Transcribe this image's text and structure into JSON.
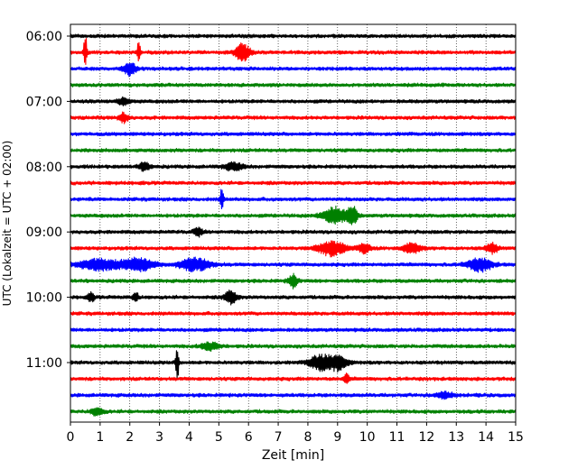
{
  "chart_data": {
    "type": "line",
    "xlabel": "Zeit  [min]",
    "ylabel": "UTC (Lokalzeit = UTC + 02:00)",
    "xlim": [
      0,
      15
    ],
    "x_ticks": [
      "0",
      "1",
      "2",
      "3",
      "4",
      "5",
      "6",
      "7",
      "8",
      "9",
      "10",
      "11",
      "12",
      "13",
      "14",
      "15"
    ],
    "y_tick_labels": [
      "06:00",
      "07:00",
      "08:00",
      "09:00",
      "10:00",
      "11:00"
    ],
    "vertical_grid": "dotted, every 1 min",
    "colors": [
      "#000000",
      "#ff0000",
      "#0000ff",
      "#008000"
    ],
    "trace_interval_min": 15,
    "first_trace": "06:00",
    "trace_count": 24,
    "events": [
      {
        "trace": 1,
        "t": 0.5,
        "amp": 22,
        "width": 0.05
      },
      {
        "trace": 1,
        "t": 2.3,
        "amp": 14,
        "width": 0.05
      },
      {
        "trace": 1,
        "t": 5.8,
        "amp": 9,
        "width": 0.25
      },
      {
        "trace": 2,
        "t": 2.0,
        "amp": 7,
        "width": 0.2
      },
      {
        "trace": 4,
        "t": 1.8,
        "amp": 4,
        "width": 0.2
      },
      {
        "trace": 5,
        "t": 1.8,
        "amp": 5,
        "width": 0.15
      },
      {
        "trace": 8,
        "t": 2.5,
        "amp": 4,
        "width": 0.2
      },
      {
        "trace": 8,
        "t": 5.5,
        "amp": 4,
        "width": 0.3
      },
      {
        "trace": 10,
        "t": 5.1,
        "amp": 15,
        "width": 0.05
      },
      {
        "trace": 11,
        "t": 8.9,
        "amp": 9,
        "width": 0.4
      },
      {
        "trace": 11,
        "t": 9.5,
        "amp": 11,
        "width": 0.15
      },
      {
        "trace": 12,
        "t": 4.3,
        "amp": 4,
        "width": 0.15
      },
      {
        "trace": 13,
        "t": 8.8,
        "amp": 8,
        "width": 0.45
      },
      {
        "trace": 13,
        "t": 9.9,
        "amp": 5,
        "width": 0.2
      },
      {
        "trace": 13,
        "t": 11.5,
        "amp": 5,
        "width": 0.3
      },
      {
        "trace": 13,
        "t": 14.2,
        "amp": 5,
        "width": 0.2
      },
      {
        "trace": 14,
        "t": 1.0,
        "amp": 6,
        "width": 0.7
      },
      {
        "trace": 14,
        "t": 2.3,
        "amp": 7,
        "width": 0.5
      },
      {
        "trace": 14,
        "t": 4.2,
        "amp": 7,
        "width": 0.5
      },
      {
        "trace": 14,
        "t": 13.8,
        "amp": 7,
        "width": 0.4
      },
      {
        "trace": 15,
        "t": 7.5,
        "amp": 7,
        "width": 0.15
      },
      {
        "trace": 16,
        "t": 0.7,
        "amp": 5,
        "width": 0.1
      },
      {
        "trace": 16,
        "t": 2.2,
        "amp": 5,
        "width": 0.1
      },
      {
        "trace": 16,
        "t": 5.4,
        "amp": 7,
        "width": 0.2
      },
      {
        "trace": 19,
        "t": 4.7,
        "amp": 4,
        "width": 0.3
      },
      {
        "trace": 20,
        "t": 3.6,
        "amp": 20,
        "width": 0.05
      },
      {
        "trace": 20,
        "t": 8.4,
        "amp": 8,
        "width": 0.35
      },
      {
        "trace": 20,
        "t": 9.0,
        "amp": 9,
        "width": 0.3
      },
      {
        "trace": 21,
        "t": 9.3,
        "amp": 5,
        "width": 0.1
      },
      {
        "trace": 22,
        "t": 12.6,
        "amp": 3,
        "width": 0.3
      },
      {
        "trace": 23,
        "t": 0.9,
        "amp": 4,
        "width": 0.2
      }
    ]
  }
}
